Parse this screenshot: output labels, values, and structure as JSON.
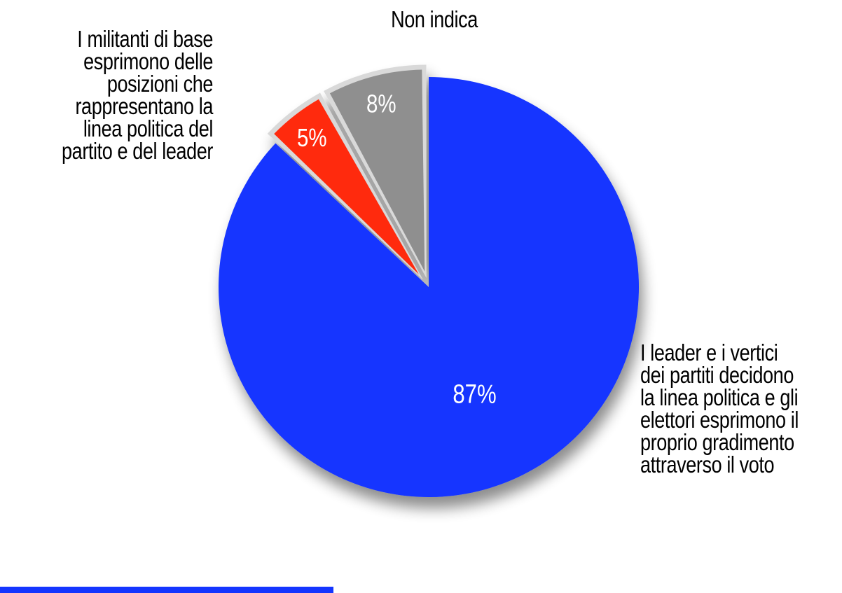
{
  "chart_data": {
    "type": "pie",
    "slices": [
      {
        "label": "I leader e i vertici dei partiti decidono la linea politica e gli elettori esprimono il proprio gradimento attraverso il voto",
        "value": 87,
        "value_label": "87%",
        "color": "#1435ff",
        "exploded": false
      },
      {
        "label": "I militanti di base esprimono delle posizioni che rappresentano la linea politica del partito e del leader",
        "value": 5,
        "value_label": "5%",
        "color": "#ff2a0c",
        "exploded": true
      },
      {
        "label": "Non indica",
        "value": 8,
        "value_label": "8%",
        "color": "#8f8f8f",
        "exploded": true
      }
    ]
  },
  "labels": {
    "leader": "I leader e i vertici dei partiti decidono la linea politica e gli elettori esprimono il proprio gradimento attraverso il voto",
    "militanti": "I militanti di base esprimono delle posizioni che rappresentano la linea politica del partito e del leader",
    "nonindica": "Non indica"
  },
  "colors": {
    "bottom_bar": "#1435ff"
  }
}
